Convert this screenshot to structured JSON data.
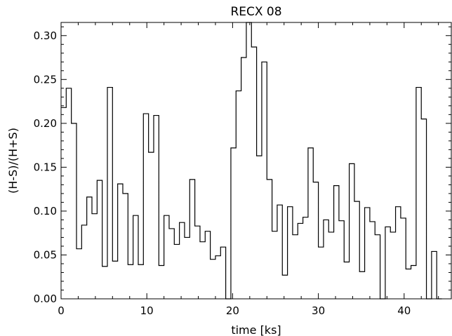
{
  "chart_data": {
    "type": "line",
    "style": "step-histogram",
    "title": "RECX 08",
    "xlabel": "time [ks]",
    "ylabel": "(H-S)/(H+S)",
    "xlim": [
      0,
      45.5
    ],
    "ylim": [
      0,
      0.315
    ],
    "x_ticks": [
      0,
      10,
      20,
      30,
      40
    ],
    "x_tick_labels": [
      "0",
      "10",
      "20",
      "30",
      "40"
    ],
    "y_ticks": [
      0,
      0.05,
      0.1,
      0.15,
      0.2,
      0.25,
      0.3
    ],
    "y_tick_labels": [
      "0.00",
      "0.05",
      "0.10",
      "0.15",
      "0.20",
      "0.25",
      "0.30"
    ],
    "grid": false,
    "line_color": "#000000",
    "bin_width_ks": 0.6,
    "bin_start_ks": 0.0,
    "values": [
      0.218,
      0.24,
      0.2,
      0.057,
      0.084,
      0.116,
      0.097,
      0.135,
      0.037,
      0.241,
      0.043,
      0.131,
      0.12,
      0.039,
      0.095,
      0.039,
      0.211,
      0.167,
      0.209,
      0.038,
      0.095,
      0.08,
      0.062,
      0.087,
      0.07,
      0.136,
      0.083,
      0.065,
      0.077,
      0.045,
      0.049,
      0.059,
      0.0,
      0.172,
      0.237,
      0.275,
      0.318,
      0.287,
      0.163,
      0.27,
      0.136,
      0.077,
      0.107,
      0.027,
      0.105,
      0.073,
      0.086,
      0.093,
      0.172,
      0.133,
      0.059,
      0.09,
      0.076,
      0.129,
      0.089,
      0.042,
      0.154,
      0.111,
      0.031,
      0.104,
      0.088,
      0.073,
      0.0,
      0.082,
      0.076,
      0.105,
      0.092,
      0.034,
      0.038,
      0.241,
      0.205,
      0.0,
      0.054,
      0.0
    ]
  }
}
